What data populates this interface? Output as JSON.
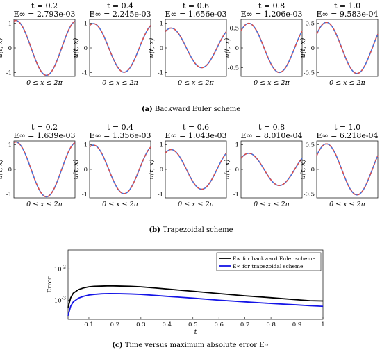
{
  "captions": {
    "a": {
      "letter": "(a)",
      "text": "Backward Euler scheme"
    },
    "b": {
      "letter": "(b)",
      "text": "Trapezoidal scheme"
    },
    "c": {
      "letter": "(c)",
      "text": "Time versus maximum absolute error E∞"
    }
  },
  "colors": {
    "exact": "#d94f4f",
    "numeric": "#4a6fd6",
    "be_error": "#000000",
    "tr_error": "#1414e6"
  },
  "chart_data": [
    {
      "type": "line",
      "id": "row-a",
      "panels": [
        {
          "title": "t = 0.2",
          "error_label": "E∞ = 2.793e-03",
          "ylim": [
            -1.15,
            1.15
          ],
          "yticks": [
            1,
            0,
            -1
          ],
          "ytick_labels": [
            "1",
            "0",
            "-1"
          ],
          "amplitude": 1.105,
          "phase": 0.2
        },
        {
          "title": "t = 0.4",
          "error_label": "E∞ = 2.245e-03",
          "ylim": [
            -1.15,
            1.15
          ],
          "yticks": [
            1,
            0,
            -1
          ],
          "ytick_labels": [
            "1",
            "0",
            "-1"
          ],
          "amplitude": 0.98,
          "phase": 0.4
        },
        {
          "title": "t = 0.6",
          "error_label": "E∞ = 1.656e-03",
          "ylim": [
            -1.15,
            1.15
          ],
          "yticks": [
            1,
            0,
            -1
          ],
          "ytick_labels": [
            "1",
            "0",
            "-1"
          ],
          "amplitude": 0.8,
          "phase": 0.6
        },
        {
          "title": "t = 0.8",
          "error_label": "E∞ = 1.206e-03",
          "ylim": [
            -0.72,
            0.72
          ],
          "yticks": [
            0.5,
            0,
            -0.5
          ],
          "ytick_labels": [
            "0.5",
            "0",
            "-0.5"
          ],
          "amplitude": 0.62,
          "phase": 0.8
        },
        {
          "title": "t = 1.0",
          "error_label": "E∞ = 9.583e-04",
          "ylim": [
            -0.58,
            0.58
          ],
          "yticks": [
            0.5,
            0,
            -0.5
          ],
          "ytick_labels": [
            "0.5",
            "0",
            "-0.5"
          ],
          "amplitude": 0.52,
          "phase": 1.0
        }
      ],
      "xlabel": "0 ≤ x ≤ 2π",
      "ylabel": "u(t, x)",
      "xlim": [
        0,
        6.2832
      ]
    },
    {
      "type": "line",
      "id": "row-b",
      "panels": [
        {
          "title": "t = 0.2",
          "error_label": "E∞ = 1.639e-03",
          "ylim": [
            -1.15,
            1.15
          ],
          "yticks": [
            1,
            0,
            -1
          ],
          "ytick_labels": [
            "1",
            "0",
            "-1"
          ],
          "amplitude": 1.105,
          "phase": 0.2
        },
        {
          "title": "t = 0.4",
          "error_label": "E∞ = 1.356e-03",
          "ylim": [
            -1.15,
            1.15
          ],
          "yticks": [
            1,
            0,
            -1
          ],
          "ytick_labels": [
            "1",
            "0",
            "-1"
          ],
          "amplitude": 0.98,
          "phase": 0.4
        },
        {
          "title": "t = 0.6",
          "error_label": "E∞ = 1.043e-03",
          "ylim": [
            -1.15,
            1.15
          ],
          "yticks": [
            1,
            0,
            -1
          ],
          "ytick_labels": [
            "1",
            "0",
            "-1"
          ],
          "amplitude": 0.8,
          "phase": 0.6
        },
        {
          "title": "t = 0.8",
          "error_label": "E∞ = 8.010e-04",
          "ylim": [
            -1.15,
            1.15
          ],
          "yticks": [
            1,
            0,
            -1
          ],
          "ytick_labels": [
            "1",
            "0",
            "-1"
          ],
          "amplitude": 0.65,
          "phase": 0.8
        },
        {
          "title": "t = 1.0",
          "error_label": "E∞ = 6.218e-04",
          "ylim": [
            -0.58,
            0.58
          ],
          "yticks": [
            0.5,
            0,
            -0.5
          ],
          "ytick_labels": [
            "0.5",
            "0",
            "-0.5"
          ],
          "amplitude": 0.52,
          "phase": 1.0
        }
      ],
      "xlabel": "0 ≤ x ≤ 2π",
      "ylabel": "u(t, x)",
      "xlim": [
        0,
        6.2832
      ]
    },
    {
      "type": "line",
      "id": "error-plot",
      "xlabel": "t",
      "ylabel": "Error",
      "xlim": [
        0.02,
        1.0
      ],
      "ylim_log10": [
        -3.6,
        -1.4
      ],
      "yscale": "log",
      "xticks": [
        0.1,
        0.2,
        0.3,
        0.4,
        0.5,
        0.6,
        0.7,
        0.8,
        0.9,
        1
      ],
      "xtick_labels": [
        "0.1",
        "0.2",
        "0.3",
        "0.4",
        "0.5",
        "0.6",
        "0.7",
        "0.8",
        "0.9",
        "1"
      ],
      "yticks_log10": [
        -3,
        -2
      ],
      "ytick_labels": [
        "10-3",
        "10-2"
      ],
      "legend": "top-right",
      "series": [
        {
          "name": "E∞ for backward Euler scheme",
          "x": [
            0.02,
            0.03,
            0.04,
            0.06,
            0.08,
            0.1,
            0.12,
            0.15,
            0.18,
            0.22,
            0.26,
            0.3,
            0.35,
            0.4,
            0.5,
            0.6,
            0.7,
            0.8,
            0.9,
            0.95,
            1.0
          ],
          "y": [
            0.0006,
            0.0012,
            0.0017,
            0.0022,
            0.0025,
            0.0027,
            0.0028,
            0.00285,
            0.0029,
            0.00285,
            0.0028,
            0.0027,
            0.0025,
            0.0023,
            0.00195,
            0.00165,
            0.0014,
            0.00122,
            0.00105,
            0.00098,
            0.00096
          ]
        },
        {
          "name": "E∞ for trapezoidal scheme",
          "x": [
            0.02,
            0.03,
            0.04,
            0.06,
            0.08,
            0.1,
            0.12,
            0.15,
            0.18,
            0.22,
            0.26,
            0.3,
            0.35,
            0.4,
            0.5,
            0.6,
            0.7,
            0.8,
            0.9,
            0.95,
            1.0
          ],
          "y": [
            0.00033,
            0.00065,
            0.0009,
            0.00118,
            0.00135,
            0.00148,
            0.00155,
            0.00162,
            0.00165,
            0.00163,
            0.0016,
            0.00155,
            0.00145,
            0.00135,
            0.00118,
            0.00102,
            0.0009,
            0.0008,
            0.00072,
            0.00068,
            0.00065
          ]
        }
      ]
    }
  ]
}
